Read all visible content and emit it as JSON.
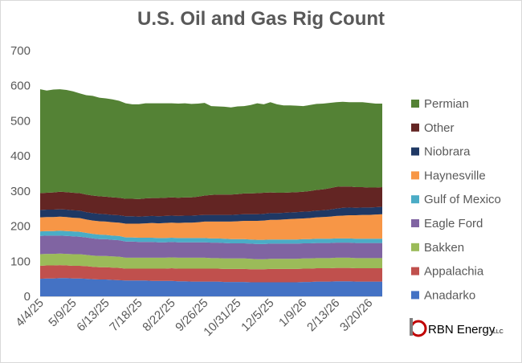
{
  "chart_data": {
    "type": "area",
    "stacked": true,
    "title": "U.S. Oil and Gas Rig Count",
    "xlabel": "",
    "ylabel": "",
    "ylim": [
      0,
      700
    ],
    "y_ticks": [
      0,
      100,
      200,
      300,
      400,
      500,
      600,
      700
    ],
    "x_tick_labels": [
      "4/4/25",
      "5/9/25",
      "6/13/25",
      "7/18/25",
      "8/22/25",
      "9/26/25",
      "10/31/25",
      "12/5/25",
      "1/9/26",
      "2/13/26",
      "3/20/26"
    ],
    "x_tick_indices": [
      0,
      5,
      10,
      15,
      20,
      25,
      30,
      35,
      40,
      45,
      50
    ],
    "grid": false,
    "legend_position": "right",
    "series": [
      {
        "name": "Anadarko",
        "color": "#4472C4",
        "values": [
          50,
          51,
          51,
          52,
          52,
          51,
          51,
          50,
          49,
          48,
          48,
          47,
          46,
          45,
          45,
          45,
          45,
          44,
          44,
          44,
          44,
          43,
          43,
          42,
          42,
          42,
          42,
          42,
          41,
          41,
          41,
          41,
          40,
          40,
          40,
          40,
          40,
          40,
          40,
          40,
          41,
          41,
          42,
          42,
          42,
          43,
          43,
          43,
          42,
          42,
          42,
          42,
          42
        ]
      },
      {
        "name": "Appalachia",
        "color": "#C0504D",
        "values": [
          37,
          37,
          37,
          37,
          36,
          36,
          36,
          36,
          35,
          35,
          35,
          35,
          35,
          34,
          34,
          34,
          34,
          35,
          35,
          35,
          36,
          36,
          36,
          37,
          37,
          37,
          37,
          37,
          37,
          37,
          37,
          37,
          37,
          37,
          37,
          38,
          38,
          38,
          38,
          38,
          38,
          38,
          38,
          38,
          38,
          38,
          38,
          38,
          38,
          38,
          38,
          38,
          38
        ]
      },
      {
        "name": "Bakken",
        "color": "#9BBB59",
        "values": [
          33,
          33,
          33,
          33,
          33,
          33,
          33,
          32,
          32,
          32,
          32,
          32,
          32,
          31,
          31,
          31,
          31,
          31,
          31,
          31,
          31,
          31,
          31,
          31,
          31,
          31,
          30,
          30,
          30,
          30,
          30,
          30,
          30,
          29,
          29,
          29,
          29,
          29,
          29,
          29,
          29,
          29,
          29,
          29,
          29,
          29,
          29,
          29,
          29,
          29,
          29,
          29,
          29
        ]
      },
      {
        "name": "Eagle Ford",
        "color": "#8064A2",
        "values": [
          52,
          52,
          52,
          51,
          51,
          51,
          50,
          50,
          49,
          48,
          48,
          47,
          47,
          46,
          46,
          45,
          45,
          45,
          44,
          44,
          44,
          44,
          44,
          44,
          44,
          44,
          44,
          44,
          44,
          43,
          43,
          43,
          43,
          43,
          43,
          43,
          43,
          43,
          43,
          43,
          43,
          43,
          43,
          43,
          43,
          43,
          43,
          43,
          43,
          43,
          43,
          43,
          43
        ]
      },
      {
        "name": "Gulf of Mexico",
        "color": "#4BACC6",
        "values": [
          13,
          13,
          13,
          14,
          14,
          14,
          14,
          13,
          13,
          13,
          12,
          12,
          12,
          12,
          12,
          12,
          12,
          12,
          12,
          12,
          12,
          12,
          12,
          12,
          12,
          12,
          12,
          12,
          12,
          12,
          12,
          12,
          12,
          12,
          12,
          12,
          12,
          12,
          12,
          12,
          12,
          12,
          12,
          12,
          12,
          12,
          12,
          12,
          12,
          12,
          12,
          12,
          12
        ]
      },
      {
        "name": "Haynesville",
        "color": "#F79646",
        "values": [
          40,
          40,
          40,
          40,
          40,
          39,
          39,
          38,
          38,
          38,
          38,
          38,
          38,
          39,
          39,
          40,
          41,
          42,
          42,
          43,
          43,
          43,
          44,
          44,
          45,
          47,
          48,
          48,
          49,
          50,
          51,
          52,
          53,
          54,
          55,
          56,
          56,
          57,
          58,
          59,
          59,
          60,
          61,
          62,
          63,
          64,
          65,
          66,
          67,
          68,
          68,
          69,
          70
        ]
      },
      {
        "name": "Niobrara",
        "color": "#1F3864",
        "values": [
          21,
          21,
          21,
          21,
          21,
          21,
          21,
          21,
          21,
          21,
          21,
          21,
          21,
          21,
          21,
          20,
          20,
          20,
          20,
          20,
          20,
          20,
          20,
          20,
          20,
          19,
          19,
          19,
          19,
          19,
          19,
          19,
          19,
          19,
          19,
          19,
          19,
          19,
          19,
          19,
          19,
          19,
          19,
          19,
          20,
          21,
          22,
          22,
          21,
          21,
          21,
          21,
          21
        ]
      },
      {
        "name": "Other",
        "color": "#632523",
        "values": [
          48,
          48,
          49,
          50,
          50,
          50,
          50,
          50,
          50,
          50,
          50,
          50,
          50,
          50,
          50,
          50,
          51,
          51,
          52,
          52,
          52,
          52,
          52,
          52,
          53,
          55,
          57,
          58,
          58,
          58,
          58,
          59,
          59,
          60,
          60,
          59,
          58,
          57,
          57,
          57,
          57,
          58,
          59,
          60,
          61,
          62,
          61,
          60,
          59,
          58,
          57,
          56,
          56
        ]
      },
      {
        "name": "Permian",
        "color": "#548235",
        "values": [
          296,
          291,
          293,
          292,
          291,
          289,
          284,
          283,
          284,
          281,
          280,
          279,
          276,
          272,
          269,
          270,
          271,
          270,
          270,
          269,
          268,
          268,
          268,
          266,
          265,
          264,
          253,
          251,
          250,
          248,
          250,
          249,
          252,
          256,
          252,
          257,
          252,
          249,
          248,
          246,
          244,
          245,
          245,
          244,
          243,
          241,
          241,
          240,
          242,
          242,
          241,
          239,
          238
        ]
      }
    ]
  },
  "logo": {
    "brand": "RBN Energy",
    "suffix": "LLC",
    "accent_color": "#C00000"
  }
}
